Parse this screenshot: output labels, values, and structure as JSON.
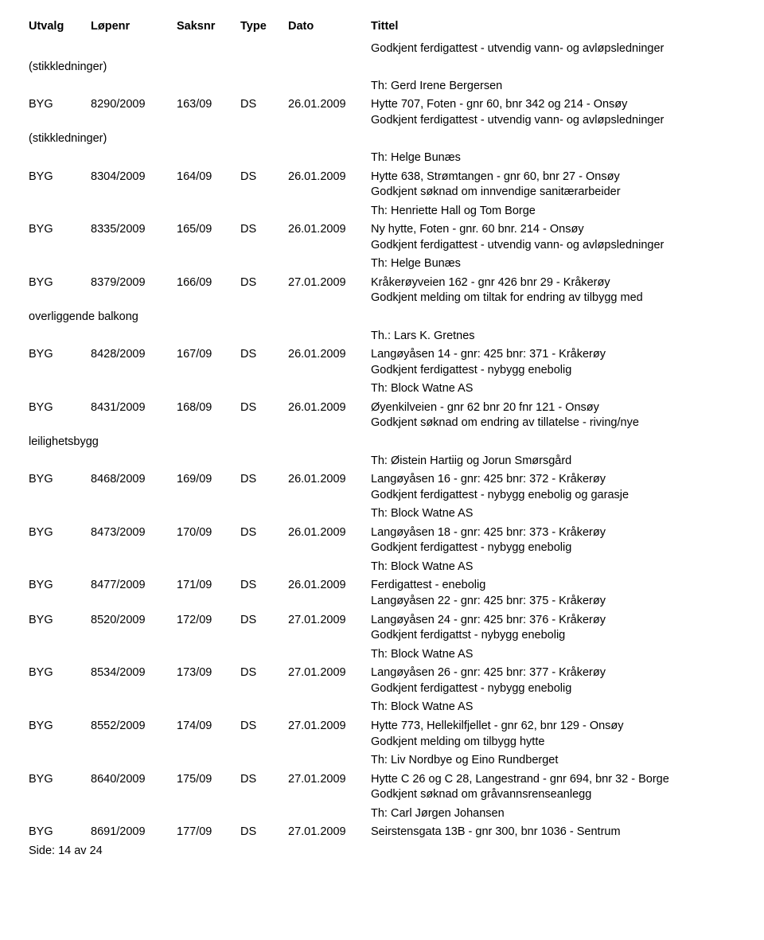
{
  "headers": {
    "utvalg": "Utvalg",
    "lopenr": "Løpenr",
    "saksnr": "Saksnr",
    "type": "Type",
    "dato": "Dato",
    "tittel": "Tittel"
  },
  "intro": {
    "line1": "Godkjent ferdigattest - utvendig vann- og avløpsledninger",
    "note": "(stikkledninger)",
    "line2": "Th: Gerd Irene Bergersen"
  },
  "entries": [
    {
      "utvalg": "BYG",
      "lopenr": "8290/2009",
      "saksnr": "163/09",
      "type": "DS",
      "dato": "26.01.2009",
      "tittel": "Hytte 707, Foten -  gnr 60, bnr 342 og 214 - Onsøy",
      "sub": [
        "Godkjent ferdigattest - utvendig vann- og avløpsledninger"
      ],
      "flushnote": "(stikkledninger)",
      "sub2": [
        "Th: Helge Bunæs"
      ]
    },
    {
      "utvalg": "BYG",
      "lopenr": "8304/2009",
      "saksnr": "164/09",
      "type": "DS",
      "dato": "26.01.2009",
      "tittel": "Hytte 638, Strømtangen - gnr 60, bnr 27 -  Onsøy",
      "sub": [
        "Godkjent søknad om innvendige sanitærarbeider",
        "Th: Henriette Hall og Tom Borge"
      ]
    },
    {
      "utvalg": "BYG",
      "lopenr": "8335/2009",
      "saksnr": "165/09",
      "type": "DS",
      "dato": "26.01.2009",
      "tittel": "Ny hytte, Foten - gnr. 60 bnr. 214 - Onsøy",
      "sub": [
        "Godkjent ferdigattest - utvendig vann- og avløpsledninger",
        "Th: Helge Bunæs"
      ]
    },
    {
      "utvalg": "BYG",
      "lopenr": "8379/2009",
      "saksnr": "166/09",
      "type": "DS",
      "dato": "27.01.2009",
      "tittel": "Kråkerøyveien 162 - gnr 426 bnr 29 - Kråkerøy",
      "sub": [
        "Godkjent melding om tiltak for endring av tilbygg med"
      ],
      "flushnote": "overliggende balkong",
      "sub2": [
        "Th.: Lars K. Gretnes"
      ]
    },
    {
      "utvalg": "BYG",
      "lopenr": "8428/2009",
      "saksnr": "167/09",
      "type": "DS",
      "dato": "26.01.2009",
      "tittel": "Langøyåsen 14 - gnr: 425 bnr: 371 - Kråkerøy",
      "sub": [
        "Godkjent ferdigattest - nybygg enebolig",
        "Th: Block Watne AS"
      ]
    },
    {
      "utvalg": "BYG",
      "lopenr": "8431/2009",
      "saksnr": "168/09",
      "type": "DS",
      "dato": "26.01.2009",
      "tittel": "Øyenkilveien - gnr 62 bnr 20 fnr 121 - Onsøy",
      "sub": [
        "Godkjent søknad om endring av tillatelse - riving/nye"
      ],
      "flushnote": "leilighetsbygg",
      "sub2": [
        "Th: Øistein Hartiig og Jorun Smørsgård"
      ]
    },
    {
      "utvalg": "BYG",
      "lopenr": "8468/2009",
      "saksnr": "169/09",
      "type": "DS",
      "dato": "26.01.2009",
      "tittel": "Langøyåsen 16 - gnr: 425 bnr: 372 - Kråkerøy",
      "sub": [
        "Godkjent ferdigattest - nybygg enebolig og garasje",
        "Th: Block Watne AS"
      ]
    },
    {
      "utvalg": "BYG",
      "lopenr": "8473/2009",
      "saksnr": "170/09",
      "type": "DS",
      "dato": "26.01.2009",
      "tittel": "Langøyåsen 18 - gnr: 425 bnr: 373 - Kråkerøy",
      "sub": [
        "Godkjent ferdigattest - nybygg enebolig",
        "Th: Block Watne AS"
      ]
    },
    {
      "utvalg": "BYG",
      "lopenr": "8477/2009",
      "saksnr": "171/09",
      "type": "DS",
      "dato": "26.01.2009",
      "tittel": "Ferdigattest - enebolig",
      "sub": [
        "Langøyåsen 22 - gnr: 425 bnr: 375 - Kråkerøy"
      ]
    },
    {
      "utvalg": "BYG",
      "lopenr": "8520/2009",
      "saksnr": "172/09",
      "type": "DS",
      "dato": "27.01.2009",
      "tittel": "Langøyåsen 24 - gnr: 425 bnr: 376 - Kråkerøy",
      "sub": [
        "Godkjent ferdigattst - nybygg enebolig",
        "Th: Block Watne AS"
      ]
    },
    {
      "utvalg": "BYG",
      "lopenr": "8534/2009",
      "saksnr": "173/09",
      "type": "DS",
      "dato": "27.01.2009",
      "tittel": "Langøyåsen 26 - gnr: 425 bnr: 377 - Kråkerøy",
      "sub": [
        "Godkjent ferdigattest - nybygg enebolig",
        "Th: Block Watne AS"
      ]
    },
    {
      "utvalg": "BYG",
      "lopenr": "8552/2009",
      "saksnr": "174/09",
      "type": "DS",
      "dato": "27.01.2009",
      "tittel": "Hytte 773, Hellekilfjellet - gnr 62, bnr 129 - Onsøy",
      "sub": [
        "Godkjent melding om tilbygg hytte",
        "Th: Liv Nordbye og Eino Rundberget"
      ]
    },
    {
      "utvalg": "BYG",
      "lopenr": "8640/2009",
      "saksnr": "175/09",
      "type": "DS",
      "dato": "27.01.2009",
      "tittel": "Hytte C 26 og C 28, Langestrand - gnr 694, bnr 32 - Borge",
      "sub": [
        "Godkjent søknad om gråvannsrenseanlegg",
        "Th: Carl Jørgen Johansen"
      ]
    },
    {
      "utvalg": "BYG",
      "lopenr": "8691/2009",
      "saksnr": "177/09",
      "type": "DS",
      "dato": "27.01.2009",
      "tittel": "Seirstensgata 13B - gnr 300, bnr 1036 - Sentrum",
      "sub": []
    }
  ],
  "footer": "Side: 14 av 24"
}
